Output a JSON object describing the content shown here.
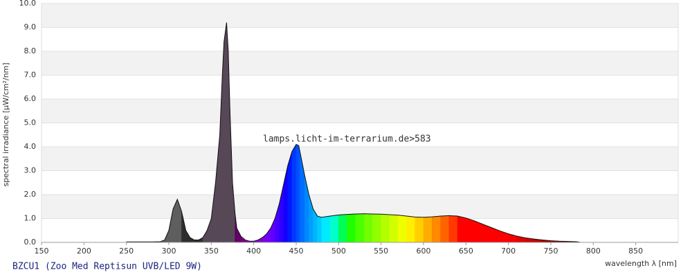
{
  "chart_data": {
    "type": "area",
    "title": "BZCU1 (Zoo Med Reptisun UVB/LED 9W)",
    "annotation": "lamps.licht-im-terrarium.de>583",
    "x_label": "wavelength λ [nm]",
    "y_label": "spectral irradiance [µW/cm²/nm]",
    "x": [
      250,
      260,
      270,
      280,
      290,
      295,
      300,
      305,
      310,
      315,
      320,
      325,
      330,
      335,
      340,
      345,
      350,
      355,
      360,
      363,
      365,
      368,
      370,
      372,
      375,
      378,
      380,
      385,
      390,
      395,
      400,
      405,
      410,
      415,
      420,
      425,
      430,
      435,
      440,
      445,
      450,
      453,
      455,
      460,
      465,
      470,
      475,
      480,
      490,
      500,
      510,
      520,
      530,
      540,
      550,
      560,
      570,
      580,
      590,
      600,
      610,
      620,
      630,
      640,
      650,
      660,
      670,
      680,
      690,
      700,
      710,
      720,
      730,
      740,
      750,
      760,
      770,
      780,
      785
    ],
    "values": [
      0.02,
      0.02,
      0.02,
      0.02,
      0.03,
      0.1,
      0.5,
      1.4,
      1.8,
      1.3,
      0.5,
      0.2,
      0.1,
      0.1,
      0.2,
      0.5,
      1.0,
      2.5,
      4.5,
      7.0,
      8.4,
      9.2,
      8.0,
      5.5,
      2.5,
      1.2,
      0.6,
      0.25,
      0.1,
      0.05,
      0.05,
      0.1,
      0.2,
      0.35,
      0.6,
      1.0,
      1.6,
      2.4,
      3.2,
      3.8,
      4.1,
      4.05,
      3.7,
      2.8,
      2.0,
      1.4,
      1.1,
      1.05,
      1.1,
      1.15,
      1.17,
      1.19,
      1.2,
      1.19,
      1.18,
      1.16,
      1.14,
      1.1,
      1.06,
      1.05,
      1.07,
      1.1,
      1.12,
      1.1,
      1.02,
      0.9,
      0.76,
      0.62,
      0.48,
      0.36,
      0.26,
      0.19,
      0.14,
      0.1,
      0.07,
      0.05,
      0.04,
      0.03,
      0.0
    ],
    "xlim": [
      150,
      900
    ],
    "ylim": [
      0,
      10
    ],
    "xticks": [
      150,
      200,
      250,
      300,
      350,
      400,
      450,
      500,
      550,
      600,
      650,
      700,
      750,
      800,
      850
    ],
    "yticks": [
      {
        "value": 0,
        "label": "0.0"
      },
      {
        "value": 1,
        "label": "1.0"
      },
      {
        "value": 2,
        "label": "2.0"
      },
      {
        "value": 3,
        "label": "3.0"
      },
      {
        "value": 4,
        "label": "4.0"
      },
      {
        "value": 5,
        "label": "5.0"
      },
      {
        "value": 6,
        "label": "6.0"
      },
      {
        "value": 7,
        "label": "7.0"
      },
      {
        "value": 8,
        "label": "8.0"
      },
      {
        "value": 9,
        "label": "9.0"
      },
      {
        "value": 10,
        "label": "10.0"
      }
    ],
    "grid": true
  }
}
